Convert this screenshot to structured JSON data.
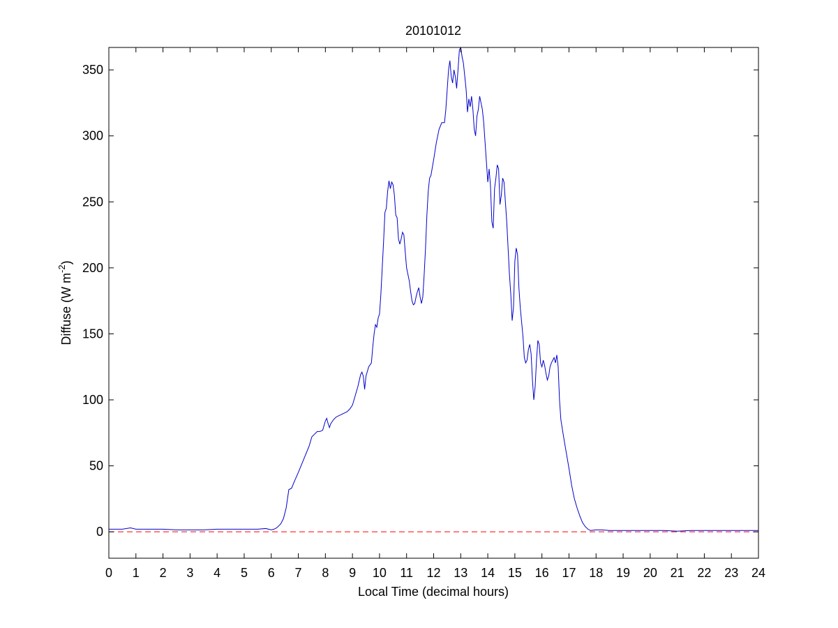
{
  "chart_data": {
    "type": "line",
    "title": "20101012",
    "xlabel": "Local Time (decimal hours)",
    "ylabel": {
      "prefix": "Diffuse (W m",
      "superscript": "-2",
      "suffix": ")"
    },
    "xlim": [
      0,
      24
    ],
    "ylim": [
      -20,
      367
    ],
    "xticks": [
      0,
      1,
      2,
      3,
      4,
      5,
      6,
      7,
      8,
      9,
      10,
      11,
      12,
      13,
      14,
      15,
      16,
      17,
      18,
      19,
      20,
      21,
      22,
      23,
      24
    ],
    "xtick_labels": [
      "0",
      "1",
      "2",
      "3",
      "4",
      "5",
      "6",
      "7",
      "8",
      "9",
      "10",
      "11",
      "12",
      "13",
      "14",
      "15",
      "16",
      "17",
      "18",
      "19",
      "20",
      "21",
      "22",
      "23",
      "24"
    ],
    "yticks": [
      0,
      50,
      100,
      150,
      200,
      250,
      300,
      350
    ],
    "ytick_labels": [
      "0",
      "50",
      "100",
      "150",
      "200",
      "250",
      "300",
      "350"
    ],
    "grid": false,
    "series": [
      {
        "color": "#0000cc",
        "style": "solid",
        "points": [
          [
            0,
            2
          ],
          [
            0.5,
            2
          ],
          [
            0.8,
            3
          ],
          [
            1.0,
            2
          ],
          [
            1.5,
            2
          ],
          [
            2.0,
            2
          ],
          [
            2.5,
            1.5
          ],
          [
            3.0,
            1.5
          ],
          [
            3.5,
            1.5
          ],
          [
            4.0,
            2
          ],
          [
            4.5,
            2
          ],
          [
            5.0,
            2
          ],
          [
            5.5,
            2
          ],
          [
            5.8,
            2.5
          ],
          [
            6.0,
            1.5
          ],
          [
            6.1,
            2
          ],
          [
            6.2,
            3
          ],
          [
            6.35,
            6
          ],
          [
            6.45,
            10
          ],
          [
            6.55,
            18
          ],
          [
            6.6,
            25
          ],
          [
            6.65,
            32
          ],
          [
            6.75,
            33
          ],
          [
            6.85,
            38
          ],
          [
            7.0,
            45
          ],
          [
            7.2,
            55
          ],
          [
            7.4,
            65
          ],
          [
            7.5,
            72
          ],
          [
            7.6,
            74
          ],
          [
            7.7,
            76
          ],
          [
            7.8,
            76
          ],
          [
            7.9,
            77
          ],
          [
            8.0,
            84
          ],
          [
            8.05,
            86
          ],
          [
            8.1,
            82
          ],
          [
            8.15,
            79
          ],
          [
            8.2,
            82
          ],
          [
            8.3,
            85
          ],
          [
            8.4,
            87
          ],
          [
            8.5,
            88
          ],
          [
            8.6,
            89
          ],
          [
            8.7,
            90
          ],
          [
            8.8,
            91
          ],
          [
            8.9,
            93
          ],
          [
            9.0,
            96
          ],
          [
            9.1,
            103
          ],
          [
            9.2,
            110
          ],
          [
            9.3,
            119
          ],
          [
            9.35,
            121
          ],
          [
            9.4,
            118
          ],
          [
            9.45,
            108
          ],
          [
            9.5,
            118
          ],
          [
            9.6,
            125
          ],
          [
            9.7,
            128
          ],
          [
            9.75,
            140
          ],
          [
            9.8,
            150
          ],
          [
            9.85,
            157
          ],
          [
            9.9,
            155
          ],
          [
            9.95,
            162
          ],
          [
            10.0,
            165
          ],
          [
            10.05,
            180
          ],
          [
            10.1,
            200
          ],
          [
            10.15,
            220
          ],
          [
            10.2,
            242
          ],
          [
            10.25,
            245
          ],
          [
            10.3,
            258
          ],
          [
            10.35,
            266
          ],
          [
            10.4,
            260
          ],
          [
            10.45,
            265
          ],
          [
            10.5,
            263
          ],
          [
            10.55,
            255
          ],
          [
            10.6,
            240
          ],
          [
            10.65,
            238
          ],
          [
            10.7,
            222
          ],
          [
            10.75,
            218
          ],
          [
            10.8,
            222
          ],
          [
            10.85,
            227
          ],
          [
            10.9,
            225
          ],
          [
            10.95,
            212
          ],
          [
            11.0,
            200
          ],
          [
            11.1,
            190
          ],
          [
            11.15,
            182
          ],
          [
            11.2,
            175
          ],
          [
            11.25,
            172
          ],
          [
            11.3,
            173
          ],
          [
            11.35,
            178
          ],
          [
            11.4,
            182
          ],
          [
            11.45,
            185
          ],
          [
            11.5,
            178
          ],
          [
            11.55,
            173
          ],
          [
            11.6,
            178
          ],
          [
            11.65,
            195
          ],
          [
            11.7,
            215
          ],
          [
            11.75,
            240
          ],
          [
            11.8,
            258
          ],
          [
            11.85,
            268
          ],
          [
            11.9,
            270
          ],
          [
            12.0,
            282
          ],
          [
            12.1,
            295
          ],
          [
            12.2,
            305
          ],
          [
            12.3,
            310
          ],
          [
            12.4,
            310
          ],
          [
            12.45,
            320
          ],
          [
            12.5,
            335
          ],
          [
            12.55,
            350
          ],
          [
            12.6,
            357
          ],
          [
            12.65,
            345
          ],
          [
            12.7,
            340
          ],
          [
            12.75,
            350
          ],
          [
            12.8,
            345
          ],
          [
            12.85,
            336
          ],
          [
            12.9,
            350
          ],
          [
            12.95,
            365
          ],
          [
            13.0,
            367
          ],
          [
            13.05,
            360
          ],
          [
            13.1,
            355
          ],
          [
            13.15,
            345
          ],
          [
            13.2,
            335
          ],
          [
            13.25,
            318
          ],
          [
            13.3,
            328
          ],
          [
            13.35,
            322
          ],
          [
            13.4,
            330
          ],
          [
            13.45,
            320
          ],
          [
            13.5,
            305
          ],
          [
            13.55,
            300
          ],
          [
            13.6,
            315
          ],
          [
            13.65,
            320
          ],
          [
            13.7,
            330
          ],
          [
            13.75,
            325
          ],
          [
            13.8,
            320
          ],
          [
            13.85,
            310
          ],
          [
            13.9,
            295
          ],
          [
            13.95,
            280
          ],
          [
            14.0,
            265
          ],
          [
            14.05,
            275
          ],
          [
            14.1,
            262
          ],
          [
            14.15,
            235
          ],
          [
            14.2,
            230
          ],
          [
            14.25,
            260
          ],
          [
            14.3,
            268
          ],
          [
            14.35,
            278
          ],
          [
            14.4,
            275
          ],
          [
            14.45,
            248
          ],
          [
            14.5,
            255
          ],
          [
            14.55,
            268
          ],
          [
            14.6,
            265
          ],
          [
            14.65,
            250
          ],
          [
            14.7,
            235
          ],
          [
            14.75,
            215
          ],
          [
            14.8,
            195
          ],
          [
            14.85,
            180
          ],
          [
            14.9,
            160
          ],
          [
            14.95,
            170
          ],
          [
            15.0,
            205
          ],
          [
            15.05,
            215
          ],
          [
            15.1,
            210
          ],
          [
            15.15,
            185
          ],
          [
            15.2,
            170
          ],
          [
            15.3,
            148
          ],
          [
            15.35,
            132
          ],
          [
            15.4,
            128
          ],
          [
            15.45,
            130
          ],
          [
            15.5,
            138
          ],
          [
            15.55,
            142
          ],
          [
            15.6,
            135
          ],
          [
            15.65,
            115
          ],
          [
            15.7,
            100
          ],
          [
            15.75,
            110
          ],
          [
            15.8,
            130
          ],
          [
            15.85,
            145
          ],
          [
            15.9,
            142
          ],
          [
            15.95,
            128
          ],
          [
            16.0,
            125
          ],
          [
            16.05,
            130
          ],
          [
            16.1,
            126
          ],
          [
            16.15,
            120
          ],
          [
            16.2,
            115
          ],
          [
            16.25,
            118
          ],
          [
            16.3,
            125
          ],
          [
            16.35,
            128
          ],
          [
            16.4,
            130
          ],
          [
            16.45,
            132
          ],
          [
            16.5,
            128
          ],
          [
            16.55,
            134
          ],
          [
            16.6,
            125
          ],
          [
            16.65,
            100
          ],
          [
            16.7,
            85
          ],
          [
            16.8,
            72
          ],
          [
            16.9,
            60
          ],
          [
            17.0,
            48
          ],
          [
            17.1,
            35
          ],
          [
            17.2,
            25
          ],
          [
            17.3,
            18
          ],
          [
            17.4,
            12
          ],
          [
            17.5,
            7
          ],
          [
            17.6,
            4
          ],
          [
            17.7,
            2
          ],
          [
            17.8,
            1
          ],
          [
            18.0,
            1.5
          ],
          [
            18.2,
            1.5
          ],
          [
            18.5,
            1
          ],
          [
            19.0,
            1
          ],
          [
            19.5,
            1
          ],
          [
            20.0,
            1
          ],
          [
            20.5,
            1
          ],
          [
            21.0,
            0.5
          ],
          [
            21.5,
            1
          ],
          [
            22.0,
            1
          ],
          [
            22.5,
            1
          ],
          [
            23.0,
            1
          ],
          [
            23.5,
            1
          ],
          [
            24.0,
            1
          ]
        ]
      },
      {
        "color": "#ff0000",
        "style": "dashed",
        "points": [
          [
            0,
            0
          ],
          [
            24,
            0
          ]
        ]
      }
    ]
  }
}
